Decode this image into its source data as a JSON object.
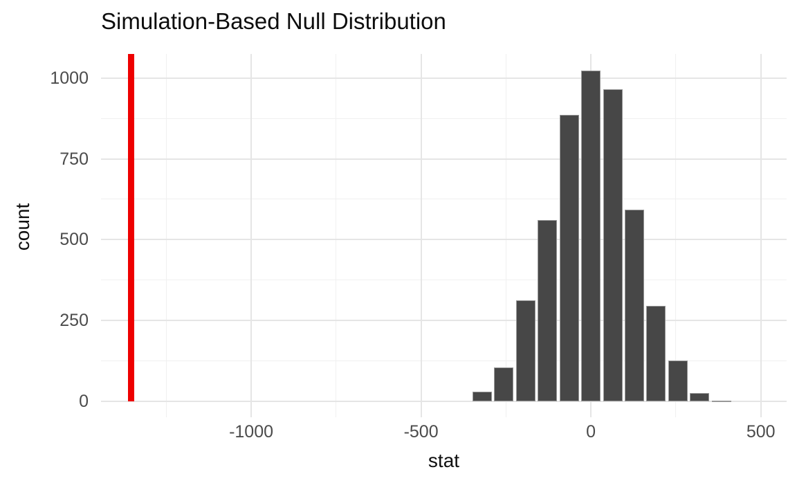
{
  "chart_data": {
    "type": "bar",
    "subtype": "histogram",
    "title": "Simulation-Based Null Distribution",
    "xlabel": "stat",
    "ylabel": "count",
    "x_ticks": [
      -1000,
      -500,
      0,
      500
    ],
    "x_tick_labels": [
      "-1000",
      "-500",
      "0",
      "500"
    ],
    "y_ticks": [
      0,
      250,
      500,
      750,
      1000
    ],
    "y_tick_labels": [
      "0",
      "250",
      "500",
      "750",
      "1000"
    ],
    "x_minor_gridlines": [
      -1250,
      -750,
      -250,
      250
    ],
    "y_minor_gridlines": [
      125,
      375,
      625,
      875
    ],
    "xlim": [
      -1442,
      576
    ],
    "ylim": [
      0,
      1076
    ],
    "grid": true,
    "legend_position": "none",
    "bin_width": 64,
    "bins": {
      "centers": [
        -320,
        -256,
        -192,
        -128,
        -64,
        0,
        64,
        128,
        192,
        256,
        320,
        384
      ],
      "counts": [
        30,
        105,
        312,
        560,
        885,
        1022,
        966,
        592,
        295,
        127,
        26,
        3
      ]
    },
    "observed_stat_line": {
      "value": -1354,
      "orientation": "vertical",
      "color": "#ee0000"
    }
  },
  "colors": {
    "background": "#ffffff",
    "bar_fill": "#474747",
    "bar_border": "#989898",
    "grid_major": "#e5e5e5",
    "grid_minor": "#f0f0f0",
    "observed_line": "#ee0000",
    "axis_text": "#4b4b4b",
    "title_text": "#0d0d0d"
  }
}
